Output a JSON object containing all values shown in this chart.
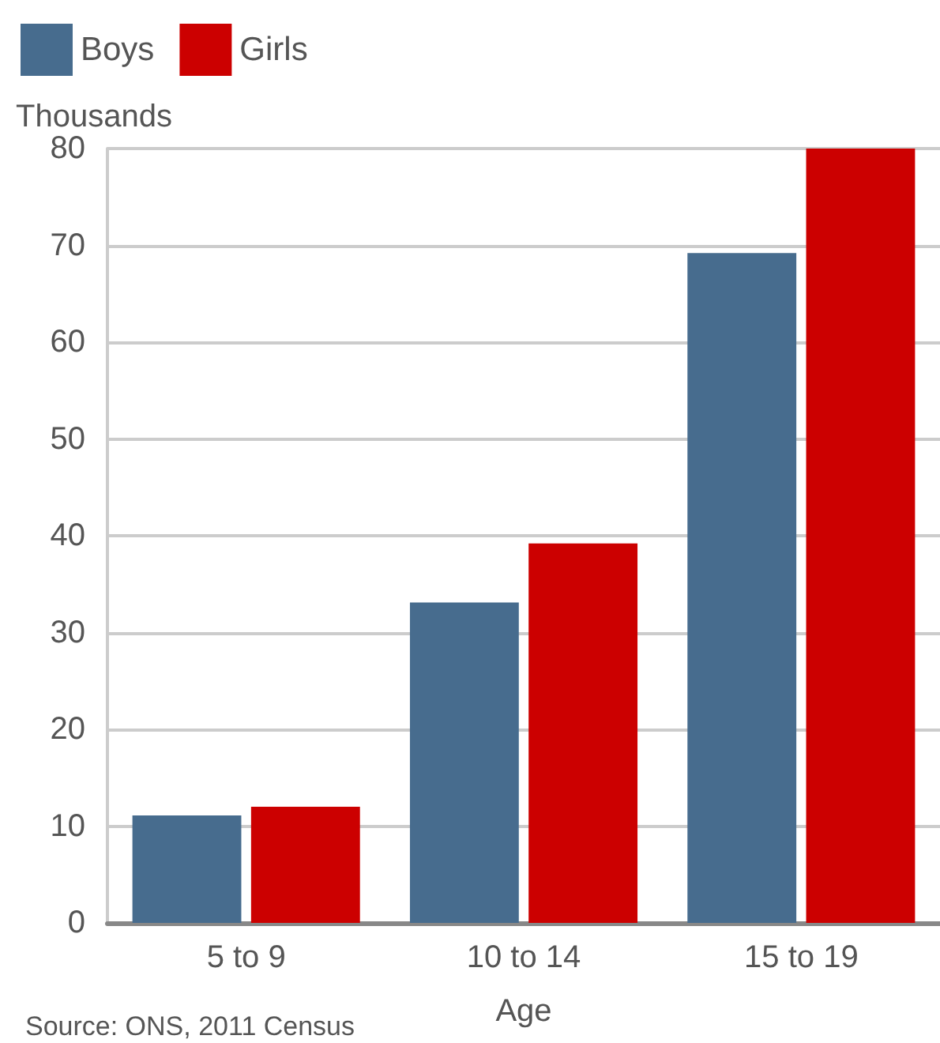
{
  "chart_data": {
    "type": "bar",
    "xlabel": "Age",
    "ylabel": "Thousands",
    "categories": [
      "5 to 9",
      "10 to 14",
      "15 to 19"
    ],
    "series": [
      {
        "name": "Boys",
        "color": "#476c8e",
        "values": [
          11.1,
          33.1,
          69.2
        ]
      },
      {
        "name": "Girls",
        "color": "#cc0000",
        "values": [
          12,
          39.2,
          80
        ]
      }
    ],
    "ylim": [
      0,
      80
    ],
    "yticks": [
      0,
      10,
      20,
      30,
      40,
      50,
      60,
      70,
      80
    ],
    "grid": "y",
    "legend": "top left",
    "annotations": [
      "Source: ONS, 2011 Census"
    ]
  }
}
